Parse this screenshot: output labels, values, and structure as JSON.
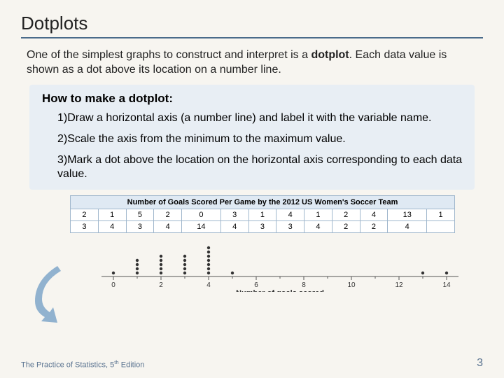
{
  "title": "Dotplots",
  "intro_pre": "One of the simplest graphs to construct and interpret is a ",
  "intro_bold": "dotplot",
  "intro_post": ". Each data value is shown as a dot above its location on a number line.",
  "callout": {
    "heading": "How to make a dotplot:",
    "steps": [
      "1)Draw a horizontal axis (a number line) and label it with the variable name.",
      "2)Scale the axis from the minimum to the maximum value.",
      "3)Mark a dot above the location on the horizontal axis corresponding to each data value."
    ]
  },
  "table": {
    "header": "Number of Goals Scored Per Game by the 2012 US Women's Soccer Team",
    "rows": [
      [
        "2",
        "1",
        "5",
        "2",
        "0",
        "3",
        "1",
        "4",
        "1",
        "2",
        "4",
        "13",
        "1"
      ],
      [
        "3",
        "4",
        "3",
        "4",
        "14",
        "4",
        "3",
        "3",
        "4",
        "2",
        "2",
        "4",
        ""
      ]
    ],
    "border_color": "#9fb6cc",
    "header_bg": "#dfe9f3",
    "cell_bg": "#ffffff"
  },
  "dotplot": {
    "axis_label": "Number of goals scored",
    "ticks": [
      0,
      2,
      4,
      6,
      8,
      10,
      12,
      14
    ],
    "xlim": [
      -0.5,
      14.5
    ],
    "counts": {
      "0": 1,
      "1": 4,
      "2": 5,
      "3": 5,
      "4": 7,
      "5": 1,
      "13": 1,
      "14": 1
    },
    "dot_color": "#333333",
    "dot_radius": 2.2,
    "axis_color": "#555555",
    "label_fontsize": 11,
    "tick_fontsize": 10
  },
  "arrow": {
    "fill": "#7fa6c9",
    "opacity": 0.85
  },
  "footer": {
    "book_pre": "The Practice of Statistics, 5",
    "book_sup": "th",
    "book_post": " Edition",
    "page": "3",
    "color": "#5a7390"
  },
  "background_color": "#f7f5f0"
}
